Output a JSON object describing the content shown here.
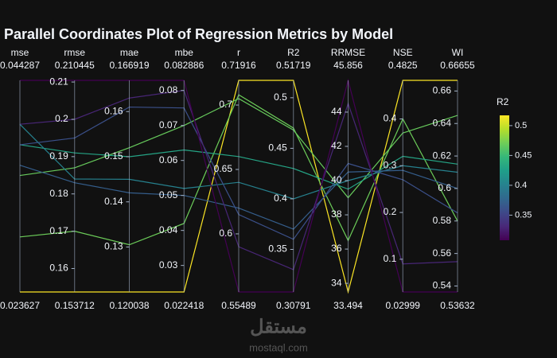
{
  "chart_data": {
    "type": "parallel",
    "title": "Parallel Coordinates Plot of Regression Metrics by Model",
    "dimensions": [
      {
        "label": "mse",
        "range": [
          0.023627,
          0.044287
        ],
        "ticks": [],
        "values": [
          0.023627,
          0.029,
          0.035,
          0.038,
          0.04,
          0.036,
          0.038,
          0.04,
          0.044287
        ]
      },
      {
        "label": "rmse",
        "range": [
          0.153712,
          0.210445
        ],
        "ticks": [
          0.16,
          0.17,
          0.18,
          0.19,
          0.2,
          0.21
        ],
        "values": [
          0.153712,
          0.17,
          0.187,
          0.191,
          0.184,
          0.183,
          0.195,
          0.2,
          0.210445
        ]
      },
      {
        "label": "mae",
        "range": [
          0.120038,
          0.166919
        ],
        "ticks": [
          0.13,
          0.14,
          0.15,
          0.16
        ],
        "values": [
          0.120038,
          0.1305,
          0.152,
          0.15,
          0.145,
          0.142,
          0.161,
          0.163,
          0.166919
        ]
      },
      {
        "label": "mbe",
        "range": [
          0.022418,
          0.082886
        ],
        "ticks": [
          0.03,
          0.04,
          0.05,
          0.06,
          0.07,
          0.08
        ],
        "values": [
          0.022418,
          0.042,
          0.07,
          0.063,
          0.052,
          0.05,
          0.075,
          0.08,
          0.082886
        ]
      },
      {
        "label": "r",
        "range": [
          0.55489,
          0.71916
        ],
        "ticks": [
          0.6,
          0.65,
          0.7
        ],
        "values": [
          0.71916,
          0.708,
          0.705,
          0.66,
          0.64,
          0.62,
          0.615,
          0.59,
          0.55489
        ]
      },
      {
        "label": "R2",
        "range": [
          0.30791,
          0.51719
        ],
        "ticks": [
          0.35,
          0.4,
          0.45,
          0.5
        ],
        "values": [
          0.51719,
          0.47,
          0.468,
          0.43,
          0.4,
          0.37,
          0.36,
          0.33,
          0.30791
        ]
      },
      {
        "label": "RRMSE",
        "range": [
          33.494,
          45.856
        ],
        "ticks": [
          34,
          36,
          38,
          40,
          42,
          44
        ],
        "values": [
          33.494,
          36.5,
          39,
          39.5,
          40,
          40.5,
          41,
          44.5,
          45.856
        ]
      },
      {
        "label": "NSE",
        "range": [
          0.02999,
          0.4825
        ],
        "ticks": [
          0.1,
          0.2,
          0.3,
          0.4
        ],
        "values": [
          0.4825,
          0.4,
          0.37,
          0.32,
          0.3,
          0.29,
          0.27,
          0.09,
          0.02999
        ]
      },
      {
        "label": "WI",
        "range": [
          0.53632,
          0.66655
        ],
        "ticks": [
          0.54,
          0.56,
          0.58,
          0.6,
          0.62,
          0.64,
          0.66
        ],
        "values": [
          0.66655,
          0.58,
          0.645,
          0.615,
          0.61,
          0.6,
          0.585,
          0.555,
          0.53632
        ]
      }
    ],
    "colorbar": {
      "title": "R2",
      "range": [
        0.30791,
        0.51719
      ],
      "ticks": [
        0.35,
        0.4,
        0.45,
        0.5
      ],
      "colorscale": [
        "#440154",
        "#482878",
        "#3e4989",
        "#31688e",
        "#26828e",
        "#1f9e89",
        "#35b779",
        "#6ece58",
        "#b5de2b",
        "#fde725"
      ]
    },
    "watermark": [
      "مستقل",
      "mostaql.com"
    ]
  }
}
